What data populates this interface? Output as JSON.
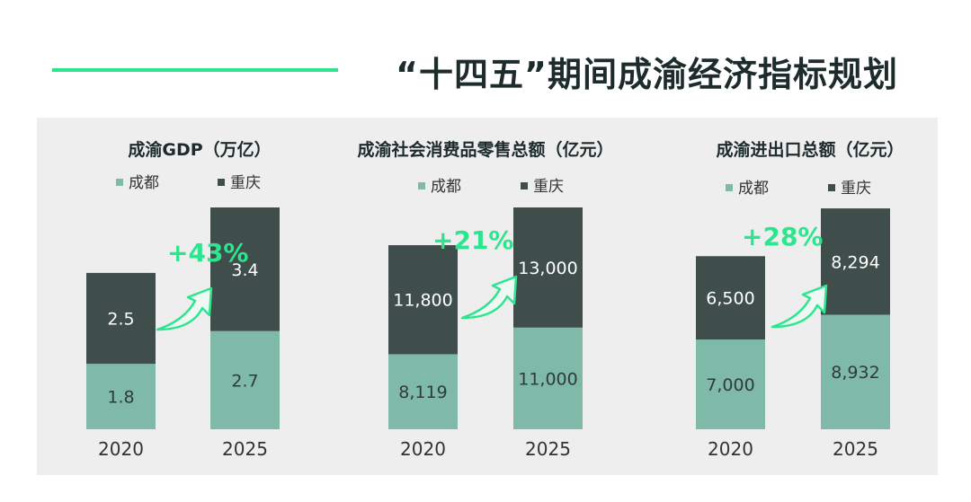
{
  "title": "“十四五”期间成渝经济指标规划",
  "colors": {
    "chengdu": "#7fb9a8",
    "chongqing": "#3f4d4b",
    "accent": "#2ee58f",
    "panel_bg": "#eeeeee"
  },
  "chart_data": [
    {
      "type": "bar",
      "stacked": true,
      "title": "成渝GDP（万亿）",
      "categories": [
        "2020",
        "2025"
      ],
      "series": [
        {
          "name": "成都",
          "values": [
            1.8,
            2.7
          ],
          "labels": [
            "1.8",
            "2.7"
          ]
        },
        {
          "name": "重庆",
          "values": [
            2.5,
            3.4
          ],
          "labels": [
            "2.5",
            "3.4"
          ]
        }
      ],
      "growth_label": "+43%",
      "ylim": [
        0,
        6.1
      ],
      "legend": "top"
    },
    {
      "type": "bar",
      "stacked": true,
      "title": "成渝社会消费品零售总额（亿元）",
      "categories": [
        "2020",
        "2025"
      ],
      "series": [
        {
          "name": "成都",
          "values": [
            8119,
            11000
          ],
          "labels": [
            "8,119",
            "11,000"
          ]
        },
        {
          "name": "重庆",
          "values": [
            11800,
            13000
          ],
          "labels": [
            "11,800",
            "13,000"
          ]
        }
      ],
      "growth_label": "+21%",
      "ylim": [
        0,
        24000
      ],
      "legend": "top"
    },
    {
      "type": "bar",
      "stacked": true,
      "title": "成渝进出口总额（亿元）",
      "categories": [
        "2020",
        "2025"
      ],
      "series": [
        {
          "name": "成都",
          "values": [
            7000,
            8932
          ],
          "labels": [
            "7,000",
            "8,932"
          ]
        },
        {
          "name": "重庆",
          "values": [
            6500,
            8294
          ],
          "labels": [
            "6,500",
            "8,294"
          ]
        }
      ],
      "growth_label": "+28%",
      "ylim": [
        0,
        17300
      ],
      "legend": "top"
    }
  ]
}
